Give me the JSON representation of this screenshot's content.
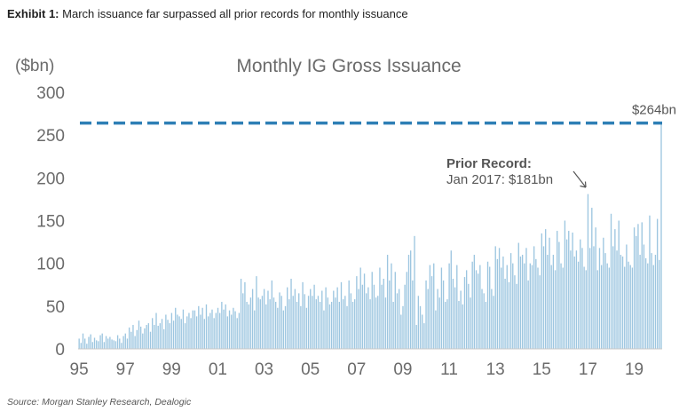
{
  "exhibit": {
    "label": "Exhibit 1:",
    "caption": "March issuance far surpassed all prior records for monthly issuance"
  },
  "source": "Source: Morgan Stanley Research, Dealogic",
  "colors": {
    "bar": "#9dc6e0",
    "reference_line": "#2e7fb5",
    "text": "#6b6b6b"
  },
  "chart_data": {
    "type": "bar",
    "title": "Monthly IG Gross Issuance",
    "ylabel": "($bn)",
    "xlabel": "",
    "ylim": [
      0,
      300
    ],
    "yticks": [
      "0",
      "50",
      "100",
      "150",
      "200",
      "250",
      "300"
    ],
    "xticks": [
      "95",
      "97",
      "99",
      "01",
      "03",
      "05",
      "07",
      "09",
      "11",
      "13",
      "15",
      "17",
      "19"
    ],
    "period": {
      "start": "Jan 1995",
      "end": "Mar 2020",
      "frequency": "monthly"
    },
    "values": [
      12,
      7,
      18,
      12,
      6,
      14,
      17,
      8,
      13,
      10,
      9,
      16,
      18,
      8,
      15,
      12,
      14,
      11,
      10,
      9,
      16,
      12,
      7,
      15,
      18,
      12,
      25,
      20,
      28,
      15,
      22,
      33,
      26,
      18,
      24,
      28,
      30,
      20,
      36,
      28,
      42,
      27,
      30,
      35,
      23,
      40,
      34,
      30,
      42,
      33,
      48,
      40,
      38,
      35,
      46,
      30,
      38,
      42,
      36,
      45,
      45,
      38,
      50,
      40,
      48,
      35,
      52,
      38,
      42,
      46,
      36,
      42,
      48,
      42,
      55,
      46,
      52,
      38,
      45,
      40,
      48,
      44,
      36,
      42,
      82,
      65,
      78,
      55,
      52,
      60,
      70,
      45,
      85,
      60,
      58,
      62,
      70,
      52,
      68,
      58,
      80,
      60,
      55,
      48,
      66,
      62,
      45,
      50,
      72,
      58,
      82,
      62,
      70,
      55,
      65,
      50,
      78,
      64,
      48,
      62,
      70,
      62,
      75,
      58,
      62,
      55,
      68,
      45,
      72,
      60,
      52,
      55,
      68,
      60,
      72,
      55,
      78,
      58,
      62,
      50,
      80,
      65,
      55,
      58,
      85,
      70,
      95,
      75,
      88,
      65,
      72,
      58,
      90,
      75,
      60,
      62,
      95,
      75,
      82,
      60,
      110,
      80,
      100,
      55,
      90,
      65,
      70,
      40,
      50,
      75,
      90,
      110,
      115,
      80,
      132,
      28,
      62,
      50,
      40,
      30,
      80,
      70,
      98,
      85,
      100,
      45,
      70,
      60,
      95,
      80,
      55,
      58,
      100,
      115,
      82,
      72,
      98,
      56,
      68,
      52,
      84,
      92,
      76,
      60,
      102,
      110,
      92,
      88,
      98,
      70,
      65,
      55,
      102,
      96,
      70,
      62,
      120,
      105,
      118,
      95,
      108,
      82,
      98,
      78,
      112,
      100,
      86,
      76,
      124,
      108,
      110,
      100,
      118,
      80,
      100,
      98,
      120,
      105,
      95,
      86,
      135,
      120,
      140,
      110,
      130,
      98,
      110,
      92,
      138,
      125,
      100,
      95,
      150,
      128,
      138,
      115,
      136,
      108,
      115,
      102,
      128,
      118,
      96,
      92,
      181,
      118,
      165,
      120,
      142,
      92,
      118,
      98,
      130,
      112,
      100,
      95,
      158,
      120,
      140,
      115,
      150,
      110,
      108,
      96,
      122,
      102,
      98,
      95,
      142,
      132,
      146,
      110,
      148,
      122,
      106,
      100,
      156,
      112,
      98,
      110,
      152,
      104,
      264
    ],
    "reference_line": {
      "value": 264,
      "label": "$264bn",
      "style": "dashed"
    },
    "annotations": [
      {
        "title": "Prior Record:",
        "text": "Jan 2017: $181bn"
      }
    ]
  }
}
